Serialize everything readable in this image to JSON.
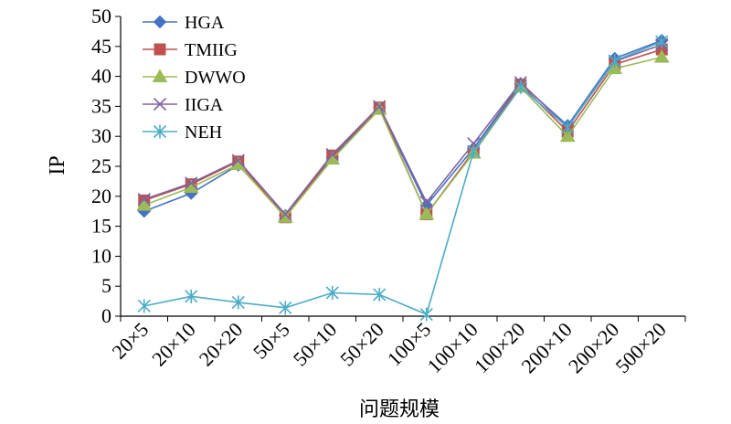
{
  "chart_data": {
    "type": "line",
    "xlabel": "问题规模",
    "ylabel": "IP",
    "ylim": [
      0,
      50
    ],
    "yticks": [
      "0",
      "5",
      "10",
      "15",
      "20",
      "25",
      "30",
      "35",
      "40",
      "45",
      "50"
    ],
    "categories": [
      "20×5",
      "20×10",
      "20×20",
      "50×5",
      "50×10",
      "50×20",
      "100×5",
      "100×10",
      "100×20",
      "200×10",
      "200×20",
      "500×20"
    ],
    "legend_position": "top-left",
    "grid": false,
    "series": [
      {
        "name": "HGA",
        "color": "#4472c4",
        "marker": "diamond",
        "values": [
          17.5,
          20.5,
          25.2,
          16.8,
          26.5,
          34.8,
          18.5,
          28.0,
          38.8,
          31.8,
          43.0,
          46.0
        ]
      },
      {
        "name": "TMIIG",
        "color": "#c0504d",
        "marker": "square",
        "values": [
          19.3,
          22.0,
          25.8,
          16.5,
          26.8,
          34.8,
          17.0,
          27.5,
          38.6,
          30.8,
          42.0,
          44.5
        ]
      },
      {
        "name": "DWWO",
        "color": "#9bbb59",
        "marker": "triangle",
        "values": [
          18.5,
          21.5,
          25.3,
          16.5,
          26.2,
          34.5,
          17.0,
          27.2,
          38.2,
          30.0,
          41.3,
          43.2
        ]
      },
      {
        "name": "IIGA",
        "color": "#8064a2",
        "marker": "x",
        "values": [
          19.5,
          22.2,
          26.0,
          17.0,
          27.0,
          35.0,
          19.0,
          28.8,
          39.0,
          31.5,
          42.5,
          45.3
        ]
      },
      {
        "name": "NEH",
        "color": "#4bacc6",
        "marker": "star",
        "values": [
          1.7,
          3.3,
          2.3,
          1.4,
          3.9,
          3.6,
          0.3,
          27.5,
          38.2,
          31.5,
          42.6,
          45.8
        ]
      }
    ]
  }
}
